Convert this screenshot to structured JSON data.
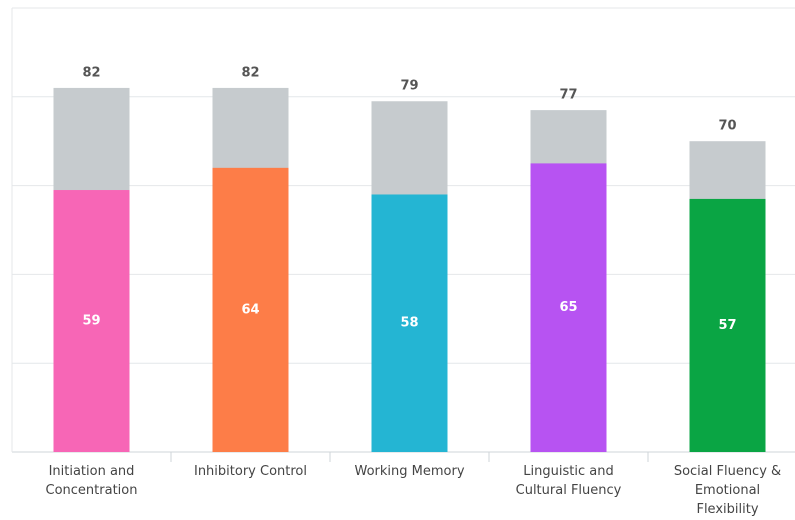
{
  "chart_data": {
    "type": "bar",
    "categories": [
      "Initiation and Concentration",
      "Inhibitory Control",
      "Working Memory",
      "Linguistic and Cultural Fluency",
      "Social Fluency & Emotional Flexibility"
    ],
    "series": [
      {
        "color": "#c6cbce",
        "values": [
          82,
          82,
          79,
          77,
          70
        ]
      },
      {
        "colors": [
          "#f766b6",
          "#fd7d48",
          "#24b5d3",
          "#b753f2",
          "#0aa544"
        ],
        "values": [
          59,
          64,
          58,
          65,
          57
        ]
      }
    ],
    "ylim": [
      0,
      100
    ],
    "yticks": [
      0,
      20,
      40,
      60,
      80,
      100
    ],
    "grid": true
  }
}
